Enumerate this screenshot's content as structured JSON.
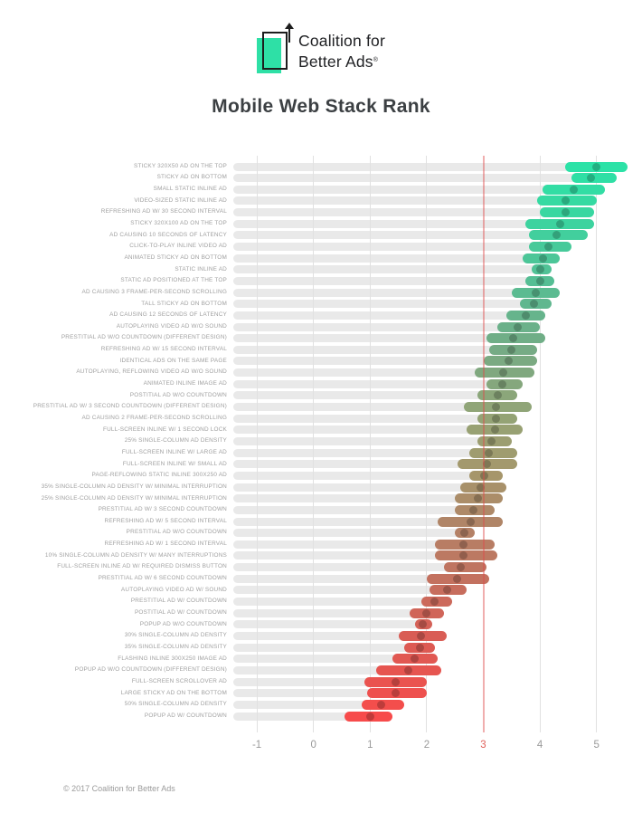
{
  "header": {
    "logo_line1": "Coalition for",
    "logo_line2": "Better Ads",
    "logo_reg_mark": "®",
    "logo_green": "#2ee0a6"
  },
  "title": "Mobile Web Stack Rank",
  "footer": {
    "copyright": "© 2017 Coalition for Better Ads"
  },
  "chart_data": {
    "type": "bar",
    "orientation": "horizontal-range",
    "title": "Mobile Web Stack Rank",
    "xlabel": "",
    "ylabel": "",
    "xlim": [
      -1.42,
      5.6
    ],
    "x_ticks": [
      -1,
      0,
      1,
      2,
      3,
      4,
      5
    ],
    "threshold": {
      "value": 3,
      "color": "#dd4b4b"
    },
    "grid": "vertical-only",
    "legend": "none",
    "colors": {
      "track": "#e9e9e9",
      "grid": "#e1e1e1",
      "tick_label": "#9a9a9a",
      "threshold_tick_label": "#e0625c",
      "row_label": "#a0a0a0",
      "scale_stops": [
        {
          "at": 0.0,
          "color": "#2ce2a7"
        },
        {
          "at": 0.08,
          "color": "#38d8a1"
        },
        {
          "at": 0.2,
          "color": "#53bf95"
        },
        {
          "at": 0.33,
          "color": "#75ab85"
        },
        {
          "at": 0.45,
          "color": "#93a476"
        },
        {
          "at": 0.55,
          "color": "#a4986c"
        },
        {
          "at": 0.65,
          "color": "#b18467"
        },
        {
          "at": 0.75,
          "color": "#c3715f"
        },
        {
          "at": 0.86,
          "color": "#da5c54"
        },
        {
          "at": 1.0,
          "color": "#f74b4b"
        }
      ]
    },
    "series": [
      {
        "label": "STICKY 320X50 AD ON THE TOP",
        "low": 4.45,
        "high": 5.55,
        "median": 5.0
      },
      {
        "label": "STICKY AD ON BOTTOM",
        "low": 4.55,
        "high": 5.35,
        "median": 4.9
      },
      {
        "label": "SMALL STATIC INLINE AD",
        "low": 4.05,
        "high": 5.15,
        "median": 4.6
      },
      {
        "label": "VIDEO-SIZED STATIC INLINE AD",
        "low": 3.95,
        "high": 5.0,
        "median": 4.45
      },
      {
        "label": "REFRESHING AD W/ 30 SECOND INTERVAL",
        "low": 4.0,
        "high": 4.95,
        "median": 4.45
      },
      {
        "label": "STICKY 320X100 AD ON THE TOP",
        "low": 3.75,
        "high": 4.95,
        "median": 4.35
      },
      {
        "label": "AD CAUSING 10 SECONDS OF LATENCY",
        "low": 3.8,
        "high": 4.85,
        "median": 4.3
      },
      {
        "label": "CLICK-TO-PLAY INLINE VIDEO AD",
        "low": 3.8,
        "high": 4.55,
        "median": 4.15
      },
      {
        "label": "ANIMATED STICKY AD ON BOTTOM",
        "low": 3.7,
        "high": 4.35,
        "median": 4.05
      },
      {
        "label": "STATIC INLINE AD",
        "low": 3.85,
        "high": 4.2,
        "median": 4.0
      },
      {
        "label": "STATIC AD POSITIONED AT THE TOP",
        "low": 3.75,
        "high": 4.25,
        "median": 4.0
      },
      {
        "label": "AD CAUSING 3 FRAME-PER-SECOND SCROLLING",
        "low": 3.5,
        "high": 4.35,
        "median": 3.92
      },
      {
        "label": "TALL STICKY AD ON BOTTOM",
        "low": 3.65,
        "high": 4.2,
        "median": 3.9
      },
      {
        "label": "AD CAUSING 12 SECONDS OF LATENCY",
        "low": 3.4,
        "high": 4.1,
        "median": 3.75
      },
      {
        "label": "AUTOPLAYING VIDEO AD W/O SOUND",
        "low": 3.25,
        "high": 4.0,
        "median": 3.6
      },
      {
        "label": "PRESTITIAL AD W/O COUNTDOWN (DIFFERENT DESIGN)",
        "low": 3.05,
        "high": 4.1,
        "median": 3.52
      },
      {
        "label": "REFRESHING AD W/ 15 SECOND INTERVAL",
        "low": 3.1,
        "high": 3.95,
        "median": 3.5
      },
      {
        "label": "IDENTICAL ADS ON THE SAME PAGE",
        "low": 3.0,
        "high": 3.95,
        "median": 3.45
      },
      {
        "label": "AUTOPLAYING, REFLOWING VIDEO AD W/O SOUND",
        "low": 2.85,
        "high": 3.9,
        "median": 3.35
      },
      {
        "label": "ANIMATED INLINE IMAGE AD",
        "low": 3.05,
        "high": 3.7,
        "median": 3.33
      },
      {
        "label": "POSTITIAL AD W/O COUNTDOWN",
        "low": 2.9,
        "high": 3.6,
        "median": 3.25
      },
      {
        "label": "PRESTITIAL AD W/ 3 SECOND COUNTDOWN (DIFFERENT DESIGN)",
        "low": 2.65,
        "high": 3.85,
        "median": 3.23
      },
      {
        "label": "AD CAUSING 2 FRAME-PER-SECOND SCROLLING",
        "low": 2.9,
        "high": 3.6,
        "median": 3.22
      },
      {
        "label": "FULL-SCREEN INLINE W/ 1 SECOND LOCK",
        "low": 2.7,
        "high": 3.7,
        "median": 3.2
      },
      {
        "label": "25% SINGLE-COLUMN AD DENSITY",
        "low": 2.9,
        "high": 3.5,
        "median": 3.15
      },
      {
        "label": "FULL-SCREEN INLINE W/ LARGE AD",
        "low": 2.75,
        "high": 3.6,
        "median": 3.1
      },
      {
        "label": "FULL-SCREEN INLINE W/ SMALL AD",
        "low": 2.55,
        "high": 3.6,
        "median": 3.07
      },
      {
        "label": "PAGE-REFLOWING STATIC INLINE 300X250 AD",
        "low": 2.75,
        "high": 3.35,
        "median": 3.02
      },
      {
        "label": "35% SINGLE-COLUMN AD DENSITY W/ MINIMAL INTERRUPTION",
        "low": 2.6,
        "high": 3.4,
        "median": 2.96
      },
      {
        "label": "25% SINGLE-COLUMN AD DENSITY W/ MINIMAL INTERRUPTION",
        "low": 2.5,
        "high": 3.35,
        "median": 2.9
      },
      {
        "label": "PRESTITIAL AD W/ 3 SECOND COUNTDOWN",
        "low": 2.5,
        "high": 3.2,
        "median": 2.82
      },
      {
        "label": "REFRESHING AD W/ 5 SECOND INTERVAL",
        "low": 2.2,
        "high": 3.35,
        "median": 2.77
      },
      {
        "label": "PRESTITIAL AD W/O COUNTDOWN",
        "low": 2.5,
        "high": 2.85,
        "median": 2.66
      },
      {
        "label": "REFRESHING AD W/ 1 SECOND INTERVAL",
        "low": 2.15,
        "high": 3.2,
        "median": 2.65
      },
      {
        "label": "10% SINGLE-COLUMN AD DENSITY W/ MANY INTERRUPTIONS",
        "low": 2.15,
        "high": 3.25,
        "median": 2.65
      },
      {
        "label": "FULL-SCREEN INLINE AD W/ REQUIRED DISMISS BUTTON",
        "low": 2.3,
        "high": 3.05,
        "median": 2.6
      },
      {
        "label": "PRESTITIAL AD W/ 6 SECOND COUNTDOWN",
        "low": 2.0,
        "high": 3.1,
        "median": 2.54
      },
      {
        "label": "AUTOPLAYING VIDEO AD W/ SOUND",
        "low": 2.05,
        "high": 2.7,
        "median": 2.36
      },
      {
        "label": "PRESTITIAL AD W/ COUNTDOWN",
        "low": 1.9,
        "high": 2.45,
        "median": 2.13
      },
      {
        "label": "POSTITIAL AD W/ COUNTDOWN",
        "low": 1.7,
        "high": 2.3,
        "median": 2.0
      },
      {
        "label": "POPUP AD W/O COUNTDOWN",
        "low": 1.8,
        "high": 2.1,
        "median": 1.93
      },
      {
        "label": "30% SINGLE-COLUMN AD DENSITY",
        "low": 1.5,
        "high": 2.35,
        "median": 1.9
      },
      {
        "label": "35% SINGLE-COLUMN AD DENSITY",
        "low": 1.6,
        "high": 2.15,
        "median": 1.88
      },
      {
        "label": "FLASHING INLINE 300X250 IMAGE AD",
        "low": 1.4,
        "high": 2.2,
        "median": 1.79
      },
      {
        "label": "POPUP AD W/O COUNTDOWN (DIFFERENT DESIGN)",
        "low": 1.1,
        "high": 2.25,
        "median": 1.68
      },
      {
        "label": "FULL-SCREEN SCROLLOVER AD",
        "low": 0.9,
        "high": 2.0,
        "median": 1.45
      },
      {
        "label": "LARGE STICKY AD ON THE BOTTOM",
        "low": 0.95,
        "high": 2.0,
        "median": 1.45
      },
      {
        "label": "50% SINGLE-COLUMN AD DENSITY",
        "low": 0.85,
        "high": 1.6,
        "median": 1.2
      },
      {
        "label": "POPUP AD W/ COUNTDOWN",
        "low": 0.55,
        "high": 1.4,
        "median": 1.0
      }
    ]
  }
}
